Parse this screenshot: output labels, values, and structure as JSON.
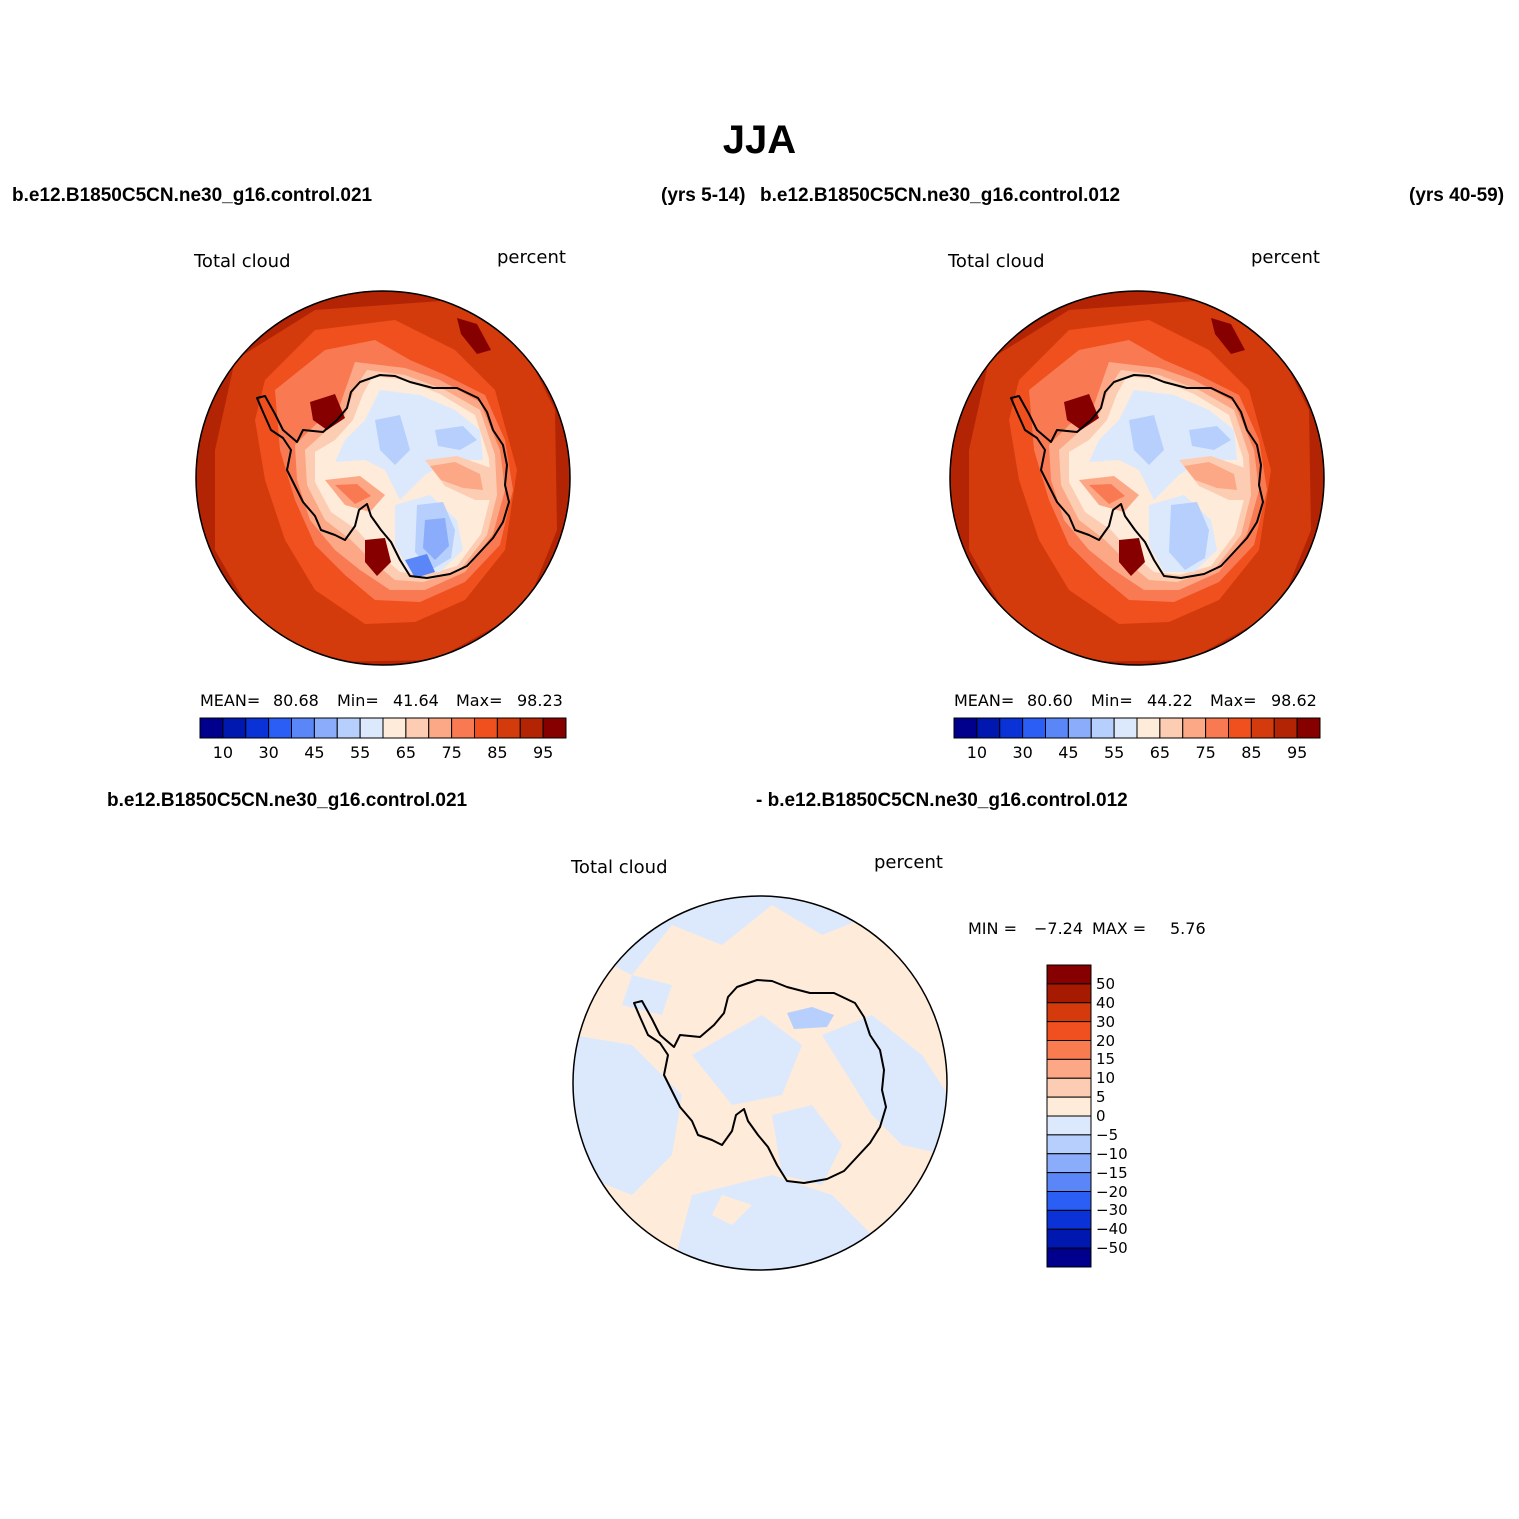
{
  "figure": {
    "title": "JJA",
    "case1": "b.e12.B1850C5CN.ne30_g16.control.021",
    "case1_years": "(yrs 5-14)",
    "case2": "b.e12.B1850C5CN.ne30_g16.control.012",
    "case2_years": "(yrs 40-59)",
    "diff_case1": "b.e12.B1850C5CN.ne30_g16.control.021",
    "diff_case2": "- b.e12.B1850C5CN.ne30_g16.control.012"
  },
  "panels": [
    {
      "variable": "Total cloud",
      "units": "percent",
      "stats": {
        "mean_label": "MEAN=",
        "mean": "80.68",
        "min_label": "Min=",
        "min": "41.64",
        "max_label": "Max=",
        "max": "98.23"
      }
    },
    {
      "variable": "Total cloud",
      "units": "percent",
      "stats": {
        "mean_label": "MEAN=",
        "mean": "80.60",
        "min_label": "Min=",
        "min": "44.22",
        "max_label": "Max=",
        "max": "98.62"
      }
    }
  ],
  "diff_panel": {
    "variable": "Total cloud",
    "units": "percent",
    "min_label": "MIN =",
    "min": "−7.24",
    "max_label": "MAX =",
    "max": "5.76"
  },
  "colorbar_main": {
    "colors": [
      "#00008c",
      "#0017b0",
      "#0a32d6",
      "#2a5ef5",
      "#5a86f8",
      "#8aacfa",
      "#b7cffc",
      "#dce9fd",
      "#feebd9",
      "#fdcdb3",
      "#fca886",
      "#f97a52",
      "#f0501e",
      "#d33a0c",
      "#b32405",
      "#870000"
    ],
    "labels": [
      "10",
      "30",
      "45",
      "55",
      "65",
      "75",
      "85",
      "95"
    ]
  },
  "colorbar_diff": {
    "colors": [
      "#870000",
      "#a51a00",
      "#d53a0c",
      "#f05020",
      "#f87c50",
      "#fca886",
      "#fdcdb3",
      "#feebd9",
      "#dce9fd",
      "#b7cffc",
      "#8aacfa",
      "#5a86f8",
      "#2a5ef5",
      "#0a32d6",
      "#0017b0",
      "#00008c"
    ],
    "labels": [
      "50",
      "40",
      "30",
      "20",
      "15",
      "10",
      "5",
      "0",
      "−5",
      "−10",
      "−15",
      "−20",
      "−30",
      "−40",
      "−50"
    ]
  },
  "map_colors": {
    "deep_red": "#b32405",
    "red": "#d33a0c",
    "orange_red": "#f0501e",
    "orange": "#f97a52",
    "salmon": "#fca886",
    "peach": "#fdcdb3",
    "cream": "#feebd9",
    "pale_blue": "#dce9fd",
    "light_blue": "#b7cffc",
    "blue": "#8aacfa",
    "mid_blue": "#5a86f8",
    "dark_red": "#870000"
  }
}
